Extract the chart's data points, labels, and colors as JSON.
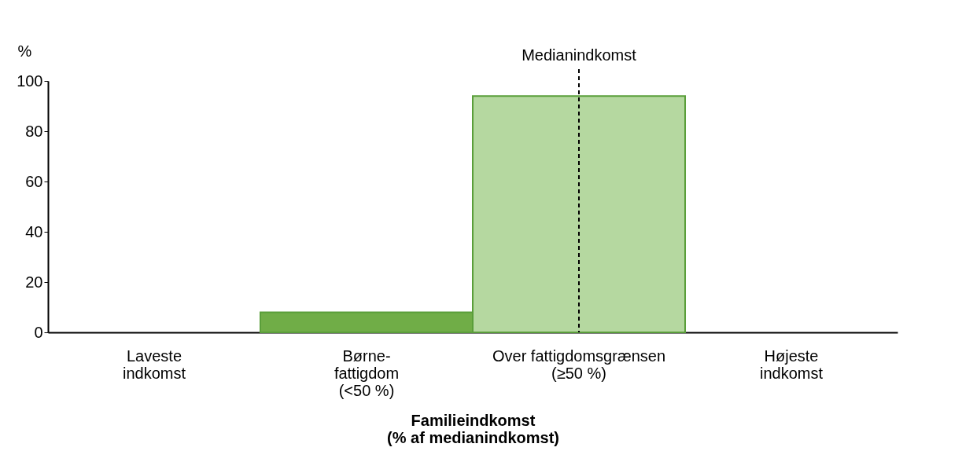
{
  "chart_data": {
    "type": "bar",
    "categories": [
      "Laveste\nindkomst",
      "Børne-\nfattigdom\n(<50 %)",
      "Over fattigdomsgrænsen\n(≥50 %)",
      "Højeste\nindkomst"
    ],
    "values": [
      null,
      8,
      94,
      null
    ],
    "colors": [
      "#70ad47",
      "#70ad47",
      "#b5d8a0",
      "#b5d8a0"
    ],
    "xlabel": "Familieindkomst\n(% af medianindkomst)",
    "ylabel": "%",
    "ylim": [
      0,
      100
    ],
    "yticks": [
      0,
      20,
      40,
      60,
      80,
      100
    ],
    "ref_lines": [
      {
        "axis": "x",
        "value": "Over fattigdomsgrænsen\n(≥50 %)",
        "label": "Medianindkomst",
        "color": "#000000",
        "line_style": "dashed"
      }
    ],
    "grid": false,
    "legend": false
  }
}
